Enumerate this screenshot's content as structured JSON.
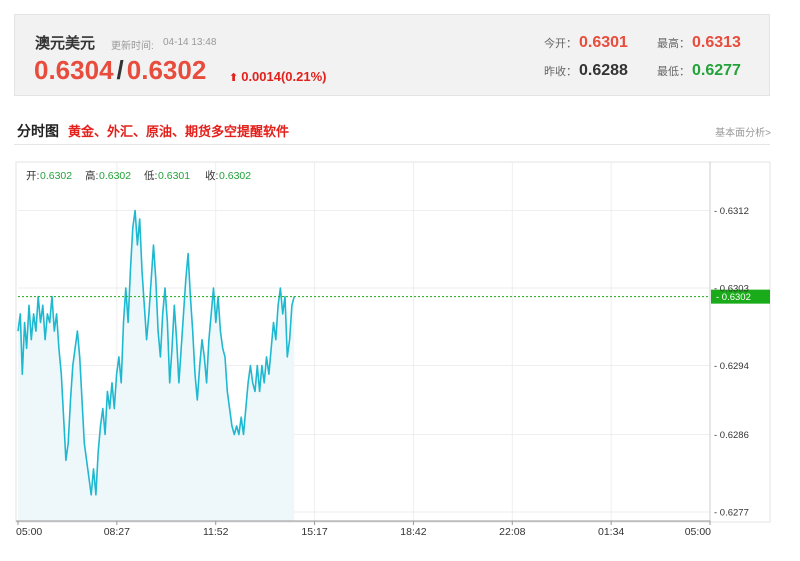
{
  "quote": {
    "symbol_name": "澳元美元",
    "update_label": "更新时间:",
    "update_time": "04-14 13:48",
    "bid": "0.6304",
    "separator": "/",
    "ask": "0.6302",
    "change": "0.0014(0.21%)",
    "change_arrow": "up-arrow-icon",
    "today_open_label": "今开：",
    "today_open": "0.6301",
    "high_label": "最高：",
    "high": "0.6313",
    "prev_close_label": "昨收：",
    "prev_close": "0.6288",
    "low_label": "最低：",
    "low": "0.6277"
  },
  "section": {
    "title": "分时图",
    "promo_text": "黄金、外汇、原油、期货多空提醒软件",
    "fundamental_link": "基本面分析>"
  },
  "colors": {
    "up_red": "#e74c3c",
    "down_green": "#23a23a",
    "line": "#1eb9d0",
    "area": "#eef8fb",
    "current_marker": "#1aab1a"
  },
  "chart_data": {
    "type": "area",
    "title": "",
    "xlabel": "",
    "ylabel": "",
    "ohlc_readout": {
      "open_label": "开:",
      "open": "0.6302",
      "high_label": "高:",
      "high": "0.6302",
      "low_label": "低:",
      "low": "0.6301",
      "close_label": "收:",
      "close": "0.6302"
    },
    "x_ticks": [
      "05:00",
      "08:27",
      "11:52",
      "15:17",
      "18:42",
      "22:08",
      "01:34",
      "05:00"
    ],
    "y_ticks": [
      0.6312,
      0.6303,
      0.6294,
      0.6286,
      0.6277
    ],
    "ylim": [
      0.6277,
      0.6312
    ],
    "x_range_hours": [
      0,
      24
    ],
    "current_price": 0.6302,
    "grid": true,
    "series": [
      {
        "values": [
          [
            0.0,
            0.6298
          ],
          [
            0.08,
            0.63
          ],
          [
            0.15,
            0.6293
          ],
          [
            0.23,
            0.6299
          ],
          [
            0.3,
            0.6296
          ],
          [
            0.38,
            0.6301
          ],
          [
            0.46,
            0.6297
          ],
          [
            0.54,
            0.63
          ],
          [
            0.62,
            0.6298
          ],
          [
            0.7,
            0.6302
          ],
          [
            0.78,
            0.6299
          ],
          [
            0.86,
            0.6301
          ],
          [
            0.94,
            0.6297
          ],
          [
            1.02,
            0.63
          ],
          [
            1.1,
            0.6299
          ],
          [
            1.18,
            0.6302
          ],
          [
            1.26,
            0.6298
          ],
          [
            1.34,
            0.63
          ],
          [
            1.42,
            0.6296
          ],
          [
            1.5,
            0.6293
          ],
          [
            1.58,
            0.6288
          ],
          [
            1.66,
            0.6283
          ],
          [
            1.74,
            0.6285
          ],
          [
            1.82,
            0.629
          ],
          [
            1.9,
            0.6294
          ],
          [
            1.98,
            0.6296
          ],
          [
            2.06,
            0.6298
          ],
          [
            2.14,
            0.6295
          ],
          [
            2.22,
            0.629
          ],
          [
            2.3,
            0.6285
          ],
          [
            2.38,
            0.6283
          ],
          [
            2.46,
            0.6281
          ],
          [
            2.54,
            0.6279
          ],
          [
            2.62,
            0.6282
          ],
          [
            2.7,
            0.6279
          ],
          [
            2.78,
            0.6284
          ],
          [
            2.86,
            0.6287
          ],
          [
            2.94,
            0.6289
          ],
          [
            3.02,
            0.6286
          ],
          [
            3.1,
            0.6291
          ],
          [
            3.18,
            0.6289
          ],
          [
            3.26,
            0.6292
          ],
          [
            3.34,
            0.6289
          ],
          [
            3.42,
            0.6293
          ],
          [
            3.5,
            0.6295
          ],
          [
            3.58,
            0.6292
          ],
          [
            3.66,
            0.6299
          ],
          [
            3.74,
            0.6303
          ],
          [
            3.82,
            0.6299
          ],
          [
            3.9,
            0.6305
          ],
          [
            3.98,
            0.631
          ],
          [
            4.06,
            0.6312
          ],
          [
            4.14,
            0.6308
          ],
          [
            4.22,
            0.6311
          ],
          [
            4.3,
            0.6305
          ],
          [
            4.38,
            0.6301
          ],
          [
            4.46,
            0.6297
          ],
          [
            4.54,
            0.63
          ],
          [
            4.62,
            0.6304
          ],
          [
            4.7,
            0.6308
          ],
          [
            4.78,
            0.6304
          ],
          [
            4.86,
            0.6298
          ],
          [
            4.94,
            0.6295
          ],
          [
            5.02,
            0.63
          ],
          [
            5.1,
            0.6303
          ],
          [
            5.18,
            0.6299
          ],
          [
            5.26,
            0.6292
          ],
          [
            5.34,
            0.6296
          ],
          [
            5.42,
            0.6301
          ],
          [
            5.5,
            0.6297
          ],
          [
            5.58,
            0.6292
          ],
          [
            5.66,
            0.6296
          ],
          [
            5.74,
            0.63
          ],
          [
            5.82,
            0.6304
          ],
          [
            5.9,
            0.6307
          ],
          [
            5.98,
            0.6302
          ],
          [
            6.06,
            0.6298
          ],
          [
            6.14,
            0.6293
          ],
          [
            6.22,
            0.629
          ],
          [
            6.3,
            0.6294
          ],
          [
            6.38,
            0.6297
          ],
          [
            6.46,
            0.6295
          ],
          [
            6.54,
            0.6292
          ],
          [
            6.62,
            0.6297
          ],
          [
            6.7,
            0.63
          ],
          [
            6.78,
            0.6303
          ],
          [
            6.86,
            0.6299
          ],
          [
            6.94,
            0.6302
          ],
          [
            7.02,
            0.6298
          ],
          [
            7.1,
            0.6296
          ],
          [
            7.18,
            0.6295
          ],
          [
            7.26,
            0.6291
          ],
          [
            7.34,
            0.6289
          ],
          [
            7.42,
            0.6287
          ],
          [
            7.5,
            0.6286
          ],
          [
            7.58,
            0.6287
          ],
          [
            7.66,
            0.6286
          ],
          [
            7.74,
            0.6288
          ],
          [
            7.82,
            0.6286
          ],
          [
            7.9,
            0.6289
          ],
          [
            7.98,
            0.6292
          ],
          [
            8.06,
            0.6294
          ],
          [
            8.14,
            0.6292
          ],
          [
            8.22,
            0.6291
          ],
          [
            8.3,
            0.6294
          ],
          [
            8.38,
            0.6291
          ],
          [
            8.46,
            0.6294
          ],
          [
            8.54,
            0.6292
          ],
          [
            8.62,
            0.6295
          ],
          [
            8.7,
            0.6293
          ],
          [
            8.78,
            0.6296
          ],
          [
            8.86,
            0.6299
          ],
          [
            8.94,
            0.6297
          ],
          [
            9.02,
            0.6301
          ],
          [
            9.1,
            0.6303
          ],
          [
            9.18,
            0.63
          ],
          [
            9.26,
            0.6302
          ],
          [
            9.34,
            0.6295
          ],
          [
            9.42,
            0.6297
          ],
          [
            9.5,
            0.6301
          ],
          [
            9.58,
            0.6302
          ]
        ]
      }
    ]
  }
}
